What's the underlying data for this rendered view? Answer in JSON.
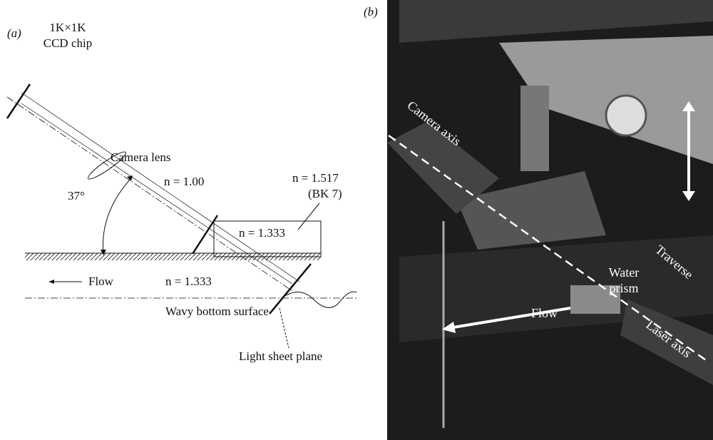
{
  "panel_a": {
    "label": "(a)",
    "texts": {
      "chip_line1": "1K×1K",
      "chip_line2": "CCD chip",
      "lens": "Camera lens",
      "n_air": "n = 1.00",
      "n_prism_line1": "n = 1.517",
      "n_prism_line2": "(BK 7)",
      "angle": "37°",
      "n_prism_water": "n = 1.333",
      "flow": "Flow",
      "n_water": "n = 1.333",
      "wavy": "Wavy bottom surface",
      "light_sheet": "Light sheet plane"
    }
  },
  "panel_b": {
    "label": "(b)",
    "texts": {
      "camera_axis": "Camera axis",
      "water_line1": "Water",
      "water_line2": "prism",
      "traverse": "Traverse",
      "flow": "Flow",
      "laser_axis": "Laser axis"
    }
  }
}
